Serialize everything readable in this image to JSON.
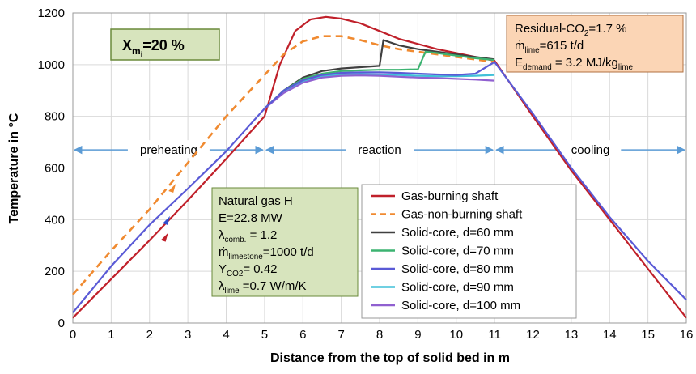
{
  "chart_data": {
    "type": "line",
    "xlabel": "Distance from the top of solid bed in m",
    "ylabel": "Temperature in °C",
    "xlim": [
      0,
      16
    ],
    "ylim": [
      0,
      1200
    ],
    "x_ticks": [
      "0",
      "1",
      "2",
      "3",
      "4",
      "5",
      "6",
      "7",
      "8",
      "9",
      "10",
      "11",
      "12",
      "13",
      "14",
      "15",
      "16"
    ],
    "y_ticks": [
      "0",
      "200",
      "400",
      "600",
      "800",
      "1000",
      "1200"
    ],
    "grid": true,
    "legend_position": "bottom-center",
    "zones": [
      {
        "label": "preheating",
        "from": 0,
        "to": 5
      },
      {
        "label": "reaction",
        "from": 5,
        "to": 11
      },
      {
        "label": "cooling",
        "from": 11,
        "to": 16
      }
    ],
    "series": [
      {
        "name": "Gas-burning shaft",
        "color": "#c0202a",
        "style": "solid",
        "x": [
          0,
          1,
          2,
          3,
          4,
          5,
          5.4,
          5.8,
          6.2,
          6.6,
          7,
          7.5,
          8,
          8.5,
          9,
          9.5,
          10,
          10.5,
          11,
          12,
          13,
          14,
          15,
          16
        ],
        "y": [
          20,
          170,
          320,
          475,
          635,
          800,
          1000,
          1130,
          1175,
          1185,
          1178,
          1160,
          1130,
          1100,
          1080,
          1060,
          1045,
          1030,
          1015,
          800,
          590,
          400,
          210,
          20
        ]
      },
      {
        "name": "Gas-non-burning shaft",
        "color": "#f08a30",
        "style": "dashed",
        "x": [
          0,
          1,
          2,
          3,
          4,
          5,
          5.5,
          6,
          6.5,
          7,
          7.5,
          8,
          8.5,
          9,
          9.5,
          10,
          10.5,
          11
        ],
        "y": [
          110,
          280,
          440,
          620,
          800,
          960,
          1040,
          1090,
          1110,
          1110,
          1095,
          1075,
          1060,
          1050,
          1040,
          1030,
          1020,
          1010
        ]
      },
      {
        "name": "Solid-core, d=60 mm",
        "color": "#404040",
        "style": "solid",
        "x": [
          5,
          5.5,
          6,
          6.5,
          7,
          7.5,
          8,
          8.1,
          8.5,
          9,
          9.5,
          10,
          10.5,
          11
        ],
        "y": [
          830,
          900,
          950,
          975,
          985,
          990,
          995,
          1095,
          1075,
          1060,
          1050,
          1040,
          1030,
          1020
        ]
      },
      {
        "name": "Solid-core, d=70 mm",
        "color": "#3cb371",
        "style": "solid",
        "x": [
          5,
          5.5,
          6,
          6.5,
          7,
          7.5,
          8,
          8.5,
          9,
          9.2,
          9.5,
          10,
          10.5,
          11
        ],
        "y": [
          830,
          900,
          945,
          965,
          975,
          978,
          980,
          980,
          982,
          1050,
          1045,
          1035,
          1025,
          1018
        ]
      },
      {
        "name": "Solid-core, d=80 mm",
        "color": "#5a5ad6",
        "style": "solid",
        "x": [
          0,
          1,
          2,
          3,
          4,
          5,
          5.5,
          6,
          6.5,
          7,
          7.5,
          8,
          8.5,
          9,
          9.5,
          10,
          10.5,
          11,
          12,
          13,
          14,
          15,
          16
        ],
        "y": [
          40,
          220,
          380,
          520,
          665,
          830,
          900,
          940,
          960,
          968,
          970,
          970,
          968,
          965,
          962,
          960,
          965,
          1010,
          810,
          600,
          410,
          240,
          90
        ]
      },
      {
        "name": "Solid-core, d=90 mm",
        "color": "#40c0d8",
        "style": "solid",
        "x": [
          5,
          5.5,
          6,
          6.5,
          7,
          7.5,
          8,
          8.5,
          9,
          9.5,
          10,
          10.5,
          11
        ],
        "y": [
          830,
          895,
          935,
          955,
          962,
          963,
          962,
          960,
          957,
          955,
          955,
          957,
          960
        ]
      },
      {
        "name": "Solid-core, d=100 mm",
        "color": "#9060d0",
        "style": "solid",
        "x": [
          5,
          5.5,
          6,
          6.5,
          7,
          7.5,
          8,
          8.5,
          9,
          9.5,
          10,
          10.5,
          11
        ],
        "y": [
          830,
          890,
          930,
          950,
          957,
          958,
          957,
          953,
          950,
          948,
          945,
          942,
          938
        ]
      }
    ],
    "annotations": {
      "xm_box": {
        "label": "X",
        "sub": "m",
        "subsub": "i",
        "value": "=20 %"
      },
      "top_right_box": [
        {
          "main": "Residual-CO",
          "sub": "2",
          "rest": "=1.7  %"
        },
        {
          "main": "ṁ",
          "sub": "lime",
          "rest": "=615  t/d"
        },
        {
          "main": "E",
          "sub": "demand",
          "rest": " = 3.2 MJ/kg",
          "sub2": "lime"
        }
      ],
      "natural_gas_box": [
        {
          "main": "Natural gas H",
          "sub": "",
          "rest": ""
        },
        {
          "main": "E=22.8 MW",
          "sub": "",
          "rest": ""
        },
        {
          "main": "λ",
          "sub": "comb.",
          "rest": " = 1.2"
        },
        {
          "main": "ṁ",
          "sub": "limestone",
          "rest": "=1000  t/d"
        },
        {
          "main": "Y",
          "sub": "CO2",
          "rest": "=  0.42"
        },
        {
          "main": "λ",
          "sub": "lime",
          "rest": " =0.7 W/m/K"
        }
      ]
    }
  }
}
